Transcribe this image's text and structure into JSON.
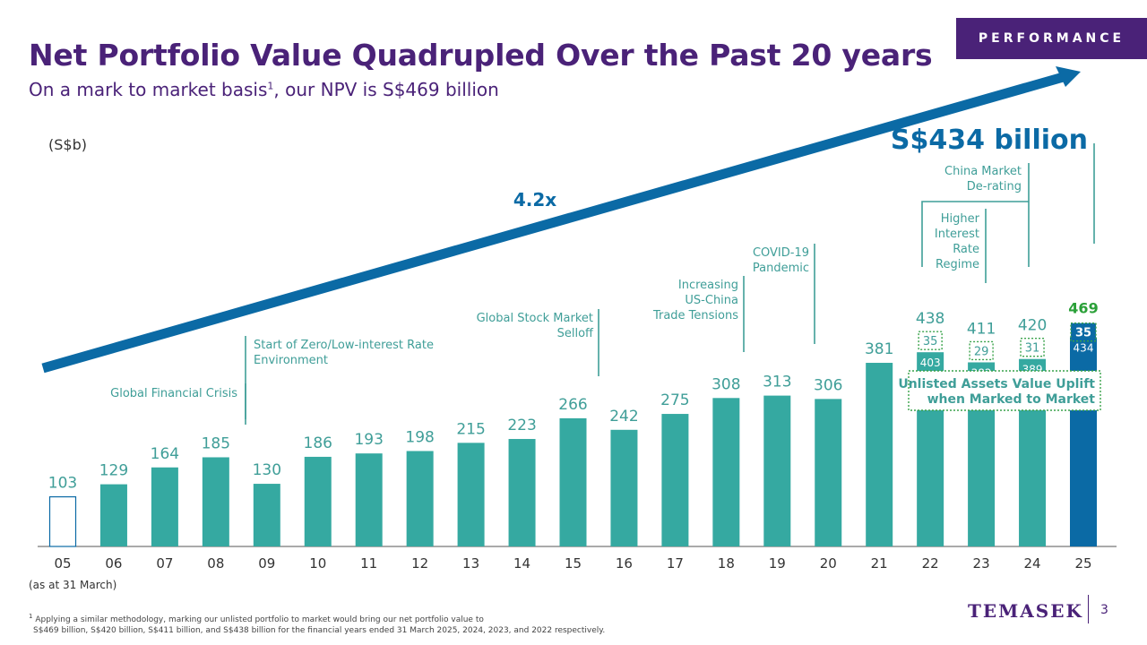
{
  "header": {
    "title": "Net Portfolio Value Quadrupled Over the Past 20 years",
    "subtitle_main": "On a mark to market basis",
    "subtitle_sup": "1",
    "subtitle_rest": ", our NPV is S$469 billion",
    "badge": "PERFORMANCE"
  },
  "unit_label": "(S$b)",
  "as_at_label": "(as at 31 March)",
  "footnote": {
    "marker": "1",
    "line1": "Applying a similar methodology, marking our unlisted portfolio to market would bring our net portfolio value to",
    "line2": "S$469 billion, S$420 billion, S$411 billion, and S$438 billion for the financial years ended 31 March 2025, 2024, 2023, and 2022 respectively."
  },
  "brand": {
    "logo": "TEMASEK",
    "page": "3"
  },
  "colors": {
    "purple": "#4a2278",
    "teal": "#35a9a1",
    "blue": "#0b6aa5",
    "text_teal": "#3f9e98",
    "green_total": "#2aa038",
    "green_dot": "#39a24a"
  },
  "chart_data": {
    "type": "bar",
    "title": "Net Portfolio Value Quadrupled Over the Past 20 years",
    "ylabel": "(S$b)",
    "xlabel": "(as at 31 March)",
    "ylim": [
      0,
      520
    ],
    "categories": [
      "05",
      "06",
      "07",
      "08",
      "09",
      "10",
      "11",
      "12",
      "13",
      "14",
      "15",
      "16",
      "17",
      "18",
      "19",
      "20",
      "21",
      "22",
      "23",
      "24",
      "25"
    ],
    "values": [
      103,
      129,
      164,
      185,
      130,
      186,
      193,
      198,
      215,
      223,
      266,
      242,
      275,
      308,
      313,
      306,
      381,
      403,
      382,
      389,
      434
    ],
    "bar_styles": [
      "outline",
      "teal",
      "teal",
      "teal",
      "teal",
      "teal",
      "teal",
      "teal",
      "teal",
      "teal",
      "teal",
      "teal",
      "teal",
      "teal",
      "teal",
      "teal",
      "teal",
      "teal",
      "teal",
      "teal",
      "blue"
    ],
    "unlisted_uplift": [
      {
        "category": "22",
        "base": 403,
        "uplift": 35,
        "total": 438
      },
      {
        "category": "23",
        "base": 382,
        "uplift": 29,
        "total": 411
      },
      {
        "category": "24",
        "base": 389,
        "uplift": 31,
        "total": 420
      },
      {
        "category": "25",
        "base": 434,
        "uplift": 35,
        "total": 469
      }
    ],
    "uplift_legend": "Unlisted Assets Value Uplift when Marked to Market",
    "uplift_legend_lines": [
      "Unlisted Assets Value Uplift",
      "when Marked to Market"
    ],
    "growth_label": "4.2x",
    "highlight_label": "S$434 billion",
    "annotations": [
      {
        "category": "08",
        "lines": [
          "Global Financial Crisis"
        ]
      },
      {
        "category": "09",
        "lines": [
          "Start of Zero/Low-interest Rate",
          "Environment"
        ]
      },
      {
        "category": "15",
        "lines": [
          "Global Stock Market",
          "Selloff"
        ]
      },
      {
        "category": "18",
        "lines": [
          "Increasing",
          "US-China",
          "Trade Tensions"
        ]
      },
      {
        "category": "20",
        "lines": [
          "COVID-19",
          "Pandemic"
        ]
      },
      {
        "category": "23",
        "lines": [
          "Higher",
          "Interest",
          "Rate",
          "Regime"
        ]
      },
      {
        "category": "24",
        "lines": [
          "China Market",
          "De-rating"
        ]
      }
    ]
  }
}
